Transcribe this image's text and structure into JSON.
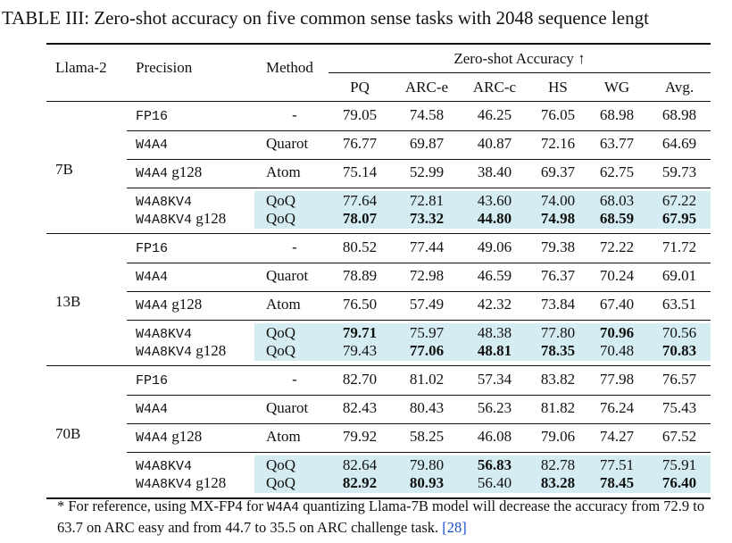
{
  "caption": "TABLE III: Zero-shot accuracy on five common sense tasks with 2048 sequence lengt",
  "header": {
    "model": "Llama-2",
    "precision": "Precision",
    "method": "Method",
    "group": "Zero-shot Accuracy ↑",
    "cols": [
      "PQ",
      "ARC-e",
      "ARC-c",
      "HS",
      "WG",
      "Avg."
    ]
  },
  "blocks": [
    {
      "model": "7B",
      "rows": [
        {
          "precision": "FP16",
          "suffix": "",
          "method": "-",
          "values": [
            "79.05",
            "74.58",
            "46.25",
            "76.05",
            "68.98",
            "68.98"
          ],
          "bold": [
            false,
            false,
            false,
            false,
            false,
            false
          ]
        },
        {
          "precision": "W4A4",
          "suffix": "",
          "method": "Quarot",
          "values": [
            "76.77",
            "69.87",
            "40.87",
            "72.16",
            "63.77",
            "64.69"
          ],
          "bold": [
            false,
            false,
            false,
            false,
            false,
            false
          ]
        },
        {
          "precision": "W4A4",
          "suffix": " g128",
          "method": "Atom",
          "values": [
            "75.14",
            "52.99",
            "38.40",
            "69.37",
            "62.75",
            "59.73"
          ],
          "bold": [
            false,
            false,
            false,
            false,
            false,
            false
          ]
        },
        {
          "precision": "W4A8KV4",
          "suffix": "",
          "method": "QoQ",
          "values": [
            "77.64",
            "72.81",
            "43.60",
            "74.00",
            "68.03",
            "67.22"
          ],
          "bold": [
            false,
            false,
            false,
            false,
            false,
            false
          ]
        },
        {
          "precision": "W4A8KV4",
          "suffix": " g128",
          "method": "QoQ",
          "values": [
            "78.07",
            "73.32",
            "44.80",
            "74.98",
            "68.59",
            "67.95"
          ],
          "bold": [
            true,
            true,
            true,
            true,
            true,
            true
          ]
        }
      ]
    },
    {
      "model": "13B",
      "rows": [
        {
          "precision": "FP16",
          "suffix": "",
          "method": "-",
          "values": [
            "80.52",
            "77.44",
            "49.06",
            "79.38",
            "72.22",
            "71.72"
          ],
          "bold": [
            false,
            false,
            false,
            false,
            false,
            false
          ]
        },
        {
          "precision": "W4A4",
          "suffix": "",
          "method": "Quarot",
          "values": [
            "78.89",
            "72.98",
            "46.59",
            "76.37",
            "70.24",
            "69.01"
          ],
          "bold": [
            false,
            false,
            false,
            false,
            false,
            false
          ]
        },
        {
          "precision": "W4A4",
          "suffix": " g128",
          "method": "Atom",
          "values": [
            "76.50",
            "57.49",
            "42.32",
            "73.84",
            "67.40",
            "63.51"
          ],
          "bold": [
            false,
            false,
            false,
            false,
            false,
            false
          ]
        },
        {
          "precision": "W4A8KV4",
          "suffix": "",
          "method": "QoQ",
          "values": [
            "79.71",
            "75.97",
            "48.38",
            "77.80",
            "70.96",
            "70.56"
          ],
          "bold": [
            true,
            false,
            false,
            false,
            true,
            false
          ]
        },
        {
          "precision": "W4A8KV4",
          "suffix": " g128",
          "method": "QoQ",
          "values": [
            "79.43",
            "77.06",
            "48.81",
            "78.35",
            "70.48",
            "70.83"
          ],
          "bold": [
            false,
            true,
            true,
            true,
            false,
            true
          ]
        }
      ]
    },
    {
      "model": "70B",
      "rows": [
        {
          "precision": "FP16",
          "suffix": "",
          "method": "-",
          "values": [
            "82.70",
            "81.02",
            "57.34",
            "83.82",
            "77.98",
            "76.57"
          ],
          "bold": [
            false,
            false,
            false,
            false,
            false,
            false
          ]
        },
        {
          "precision": "W4A4",
          "suffix": "",
          "method": "Quarot",
          "values": [
            "82.43",
            "80.43",
            "56.23",
            "81.82",
            "76.24",
            "75.43"
          ],
          "bold": [
            false,
            false,
            false,
            false,
            false,
            false
          ]
        },
        {
          "precision": "W4A4",
          "suffix": " g128",
          "method": "Atom",
          "values": [
            "79.92",
            "58.25",
            "46.08",
            "79.06",
            "74.27",
            "67.52"
          ],
          "bold": [
            false,
            false,
            false,
            false,
            false,
            false
          ]
        },
        {
          "precision": "W4A8KV4",
          "suffix": "",
          "method": "QoQ",
          "values": [
            "82.64",
            "79.80",
            "56.83",
            "82.78",
            "77.51",
            "75.91"
          ],
          "bold": [
            false,
            false,
            true,
            false,
            false,
            false
          ]
        },
        {
          "precision": "W4A8KV4",
          "suffix": " g128",
          "method": "QoQ",
          "values": [
            "82.92",
            "80.93",
            "56.40",
            "83.28",
            "78.45",
            "76.40"
          ],
          "bold": [
            true,
            true,
            false,
            true,
            true,
            true
          ]
        }
      ]
    }
  ],
  "footnote": {
    "part1": "* For reference, using MX-FP4 for ",
    "code": "W4A4",
    "part2": " quantizing Llama-7B model will decrease the accuracy from 72.9 to 63.7 on ARC easy and from 44.7 to 35.5 on ARC challenge task. ",
    "ref": "[28]"
  }
}
